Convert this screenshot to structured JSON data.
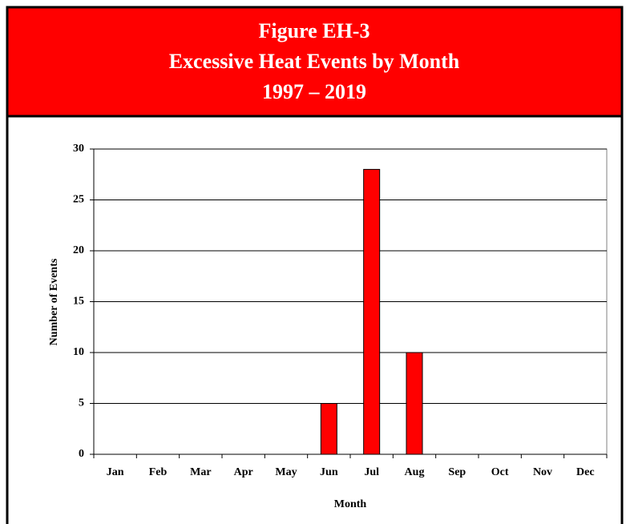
{
  "chart_data": {
    "type": "bar",
    "title": [
      "Figure EH-3",
      "Excessive Heat Events by Month",
      "1997 – 2019"
    ],
    "x_label": "Month",
    "y_label": "Number of Events",
    "categories": [
      "Jan",
      "Feb",
      "Mar",
      "Apr",
      "May",
      "Jun",
      "Jul",
      "Aug",
      "Sep",
      "Oct",
      "Nov",
      "Dec"
    ],
    "values": [
      0,
      0,
      0,
      0,
      0,
      5,
      28,
      10,
      0,
      0,
      0,
      0
    ],
    "color": "#ff0000",
    "ylim": [
      0,
      30
    ],
    "yticks": [
      0,
      5,
      10,
      15,
      20,
      25,
      30
    ],
    "grid": true
  }
}
